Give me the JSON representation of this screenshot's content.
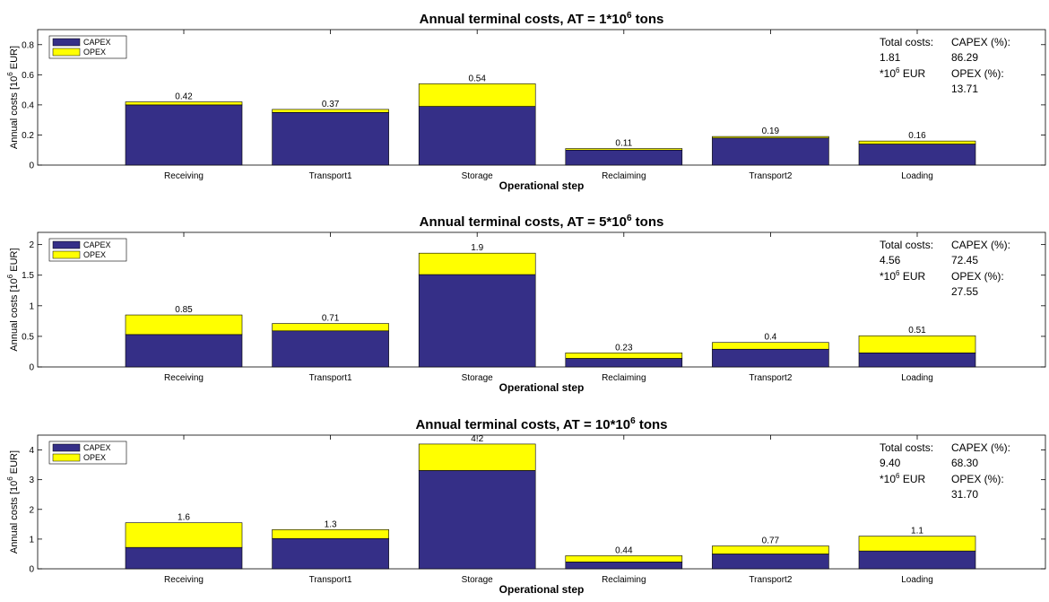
{
  "chart_data": [
    {
      "type": "bar",
      "stacked": true,
      "title": "Annual terminal costs, AT = 1*10",
      "title_exp": "6",
      "title_suffix": " tons",
      "xlabel": "Operational step",
      "ylabel": "Annual costs [10",
      "ylabel_exp": "6",
      "ylabel_suffix": " EUR]",
      "categories": [
        "Receiving",
        "Transport1",
        "Storage",
        "Reclaiming",
        "Transport2",
        "Loading"
      ],
      "ylim": [
        0,
        0.9
      ],
      "yticks": [
        0,
        0.2,
        0.4,
        0.6,
        0.8
      ],
      "ytick_labels": [
        "0",
        "0.2",
        "0.4",
        "0.6",
        "0.8"
      ],
      "grid": false,
      "legend_position": "top-left",
      "series": [
        {
          "name": "CAPEX",
          "color": "#352f87",
          "values": [
            0.4,
            0.35,
            0.39,
            0.1,
            0.18,
            0.14
          ]
        },
        {
          "name": "OPEX",
          "color": "#ffff00",
          "values": [
            0.02,
            0.02,
            0.15,
            0.01,
            0.01,
            0.02
          ]
        }
      ],
      "data_labels": [
        "0.42",
        "0.37",
        "0.54",
        "0.11",
        "0.19",
        "0.16"
      ],
      "annotation": {
        "total_label": "Total costs:",
        "total_value": "1.81",
        "total_unit": "*10",
        "total_unit_exp": "6",
        "total_unit_suffix": " EUR",
        "capex_label": "CAPEX (%):",
        "capex_value": "86.29",
        "opex_label": "OPEX (%):",
        "opex_value": "13.71"
      }
    },
    {
      "type": "bar",
      "stacked": true,
      "title": "Annual terminal costs, AT = 5*10",
      "title_exp": "6",
      "title_suffix": " tons",
      "xlabel": "Operational step",
      "ylabel": "Annual costs [10",
      "ylabel_exp": "6",
      "ylabel_suffix": " EUR]",
      "categories": [
        "Receiving",
        "Transport1",
        "Storage",
        "Reclaiming",
        "Transport2",
        "Loading"
      ],
      "ylim": [
        0,
        2.2
      ],
      "yticks": [
        0,
        0.5,
        1,
        1.5,
        2
      ],
      "ytick_labels": [
        "0",
        "0.5",
        "1",
        "1.5",
        "2"
      ],
      "grid": false,
      "legend_position": "top-left",
      "series": [
        {
          "name": "CAPEX",
          "color": "#352f87",
          "values": [
            0.53,
            0.59,
            1.51,
            0.14,
            0.29,
            0.23
          ]
        },
        {
          "name": "OPEX",
          "color": "#ffff00",
          "values": [
            0.32,
            0.12,
            0.35,
            0.09,
            0.11,
            0.28
          ]
        }
      ],
      "data_labels": [
        "0.85",
        "0.71",
        "1.9",
        "0.23",
        "0.4",
        "0.51"
      ],
      "annotation": {
        "total_label": "Total costs:",
        "total_value": "4.56",
        "total_unit": "*10",
        "total_unit_exp": "6",
        "total_unit_suffix": " EUR",
        "capex_label": "CAPEX (%):",
        "capex_value": "72.45",
        "opex_label": "OPEX (%):",
        "opex_value": "27.55"
      }
    },
    {
      "type": "bar",
      "stacked": true,
      "title": "Annual terminal costs, AT = 10*10",
      "title_exp": "6",
      "title_suffix": " tons",
      "xlabel": "Operational step",
      "ylabel": "Annual costs [10",
      "ylabel_exp": "6",
      "ylabel_suffix": " EUR]",
      "categories": [
        "Receiving",
        "Transport1",
        "Storage",
        "Reclaiming",
        "Transport2",
        "Loading"
      ],
      "ylim": [
        0,
        4.5
      ],
      "yticks": [
        0,
        1,
        2,
        3,
        4
      ],
      "ytick_labels": [
        "0",
        "1",
        "2",
        "3",
        "4"
      ],
      "grid": false,
      "legend_position": "top-left",
      "series": [
        {
          "name": "CAPEX",
          "color": "#352f87",
          "values": [
            0.72,
            1.02,
            3.31,
            0.23,
            0.5,
            0.6
          ]
        },
        {
          "name": "OPEX",
          "color": "#ffff00",
          "values": [
            0.83,
            0.3,
            0.89,
            0.21,
            0.27,
            0.5
          ]
        }
      ],
      "data_labels": [
        "1.6",
        "1.3",
        "4.2",
        "0.44",
        "0.77",
        "1.1"
      ],
      "annotation": {
        "total_label": "Total costs:",
        "total_value": "9.40",
        "total_unit": "*10",
        "total_unit_exp": "6",
        "total_unit_suffix": " EUR",
        "capex_label": "CAPEX (%):",
        "capex_value": "68.30",
        "opex_label": "OPEX (%):",
        "opex_value": "31.70"
      }
    }
  ]
}
